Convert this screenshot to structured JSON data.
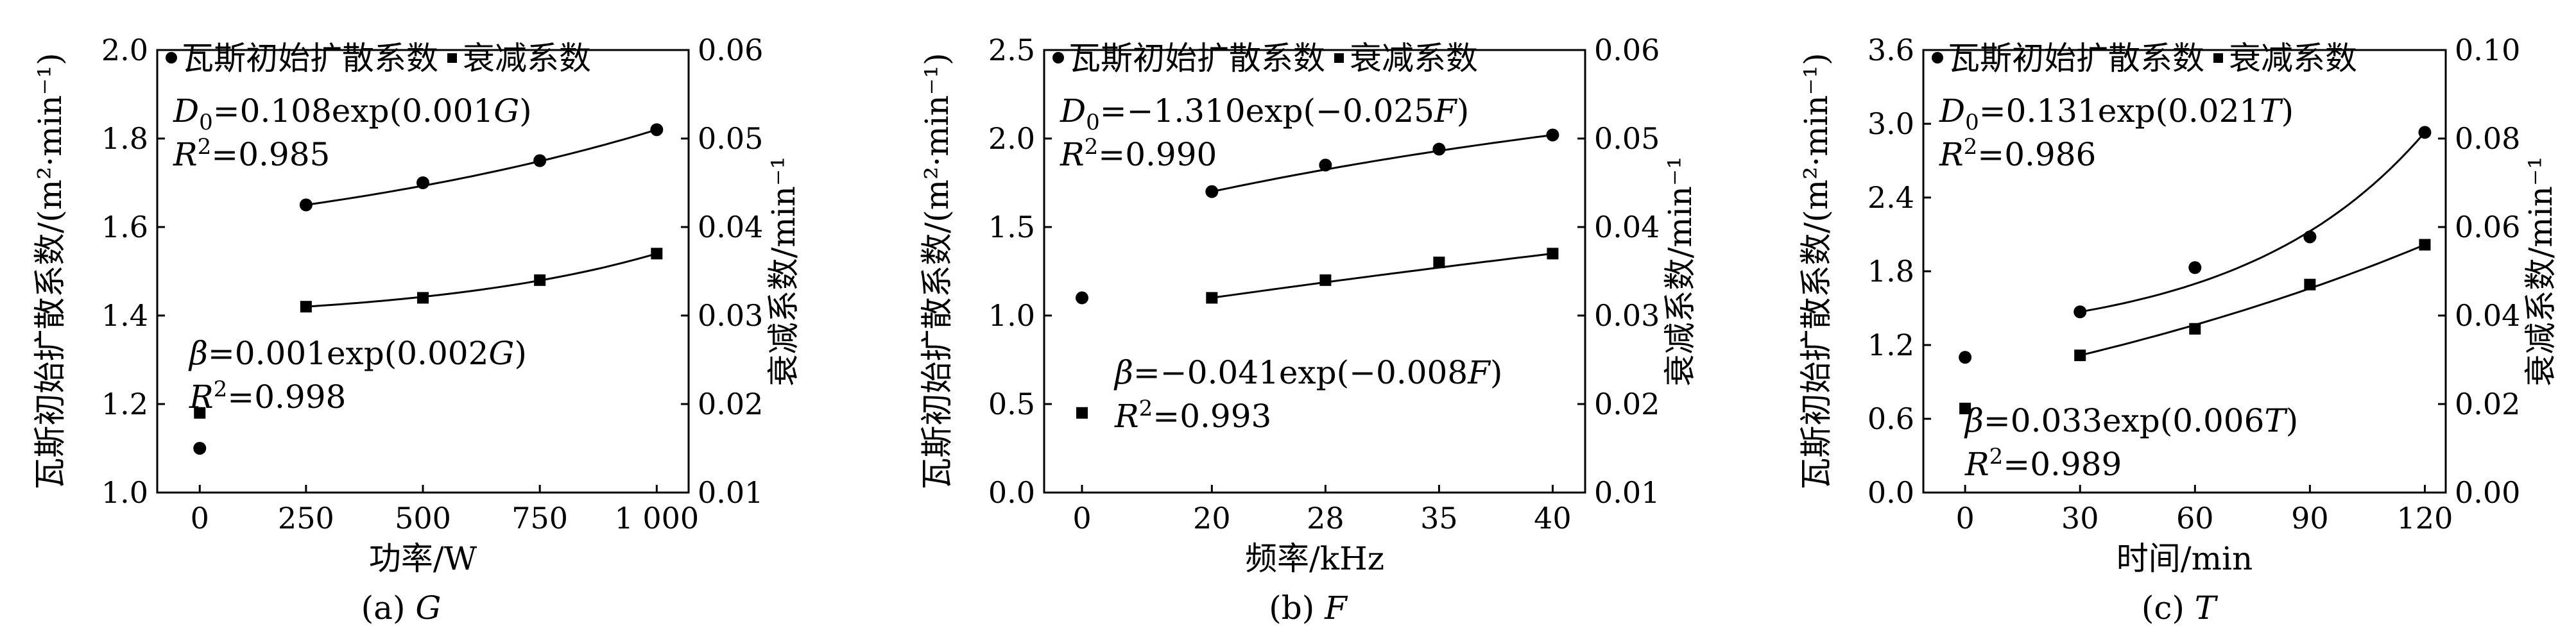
{
  "chart_data": [
    {
      "type": "scatter",
      "caption": "(a) G",
      "xlabel": "功率/W",
      "ylabel_left": "瓦斯初始扩散系数/(m²·min⁻¹)",
      "ylabel_right": "衰减系数/min⁻¹",
      "x_categories": [
        "0",
        "250",
        "500",
        "750",
        "1 000"
      ],
      "ylim_left": [
        1.0,
        2.0
      ],
      "yticks_left": [
        "1.0",
        "1.2",
        "1.4",
        "1.6",
        "1.8",
        "2.0"
      ],
      "ylim_right": [
        0.01,
        0.06
      ],
      "yticks_right": [
        "0.01",
        "0.02",
        "0.03",
        "0.04",
        "0.05",
        "0.06"
      ],
      "legend": [
        "瓦斯初始扩散系数",
        "衰减系数"
      ],
      "series": [
        {
          "name": "瓦斯初始扩散系数",
          "axis": "left",
          "marker": "circle",
          "x": [
            "0",
            "250",
            "500",
            "750",
            "1 000"
          ],
          "y": [
            1.1,
            1.65,
            1.7,
            1.75,
            1.82
          ]
        },
        {
          "name": "衰减系数",
          "axis": "right",
          "marker": "square",
          "x": [
            "0",
            "250",
            "500",
            "750",
            "1 000"
          ],
          "y": [
            0.019,
            0.031,
            0.032,
            0.034,
            0.037
          ]
        }
      ],
      "fits": [
        {
          "series": 0,
          "k": 0.001,
          "x_from": 250,
          "x_to": 1000
        },
        {
          "series": 1,
          "k": 0.002,
          "x_from": 250,
          "x_to": 1000
        }
      ],
      "equations": [
        {
          "lhs": "D",
          "sub": "0",
          "rhs_a": "=0.108exp(0.001",
          "var": "G",
          "rhs_b": ")",
          "r2": "=0.985"
        },
        {
          "lhs": "β",
          "sub": "",
          "rhs_a": "=0.001exp(0.002",
          "var": "G",
          "rhs_b": ")",
          "r2": "=0.998"
        }
      ]
    },
    {
      "type": "scatter",
      "caption": "(b) F",
      "xlabel": "频率/kHz",
      "ylabel_left": "瓦斯初始扩散系数/(m²·min⁻¹)",
      "ylabel_right": "衰减系数/min⁻¹",
      "x_categories": [
        "0",
        "20",
        "28",
        "35",
        "40"
      ],
      "ylim_left": [
        0.0,
        2.5
      ],
      "yticks_left": [
        "0.0",
        "0.5",
        "1.0",
        "1.5",
        "2.0",
        "2.5"
      ],
      "ylim_right": [
        0.01,
        0.06
      ],
      "yticks_right": [
        "0.01",
        "0.02",
        "0.03",
        "0.04",
        "0.05",
        "0.06"
      ],
      "legend": [
        "瓦斯初始扩散系数",
        "衰减系数"
      ],
      "series": [
        {
          "name": "瓦斯初始扩散系数",
          "axis": "left",
          "marker": "circle",
          "x": [
            "0",
            "20",
            "28",
            "35",
            "40"
          ],
          "y": [
            1.1,
            1.7,
            1.85,
            1.94,
            2.02
          ]
        },
        {
          "name": "衰减系数",
          "axis": "right",
          "marker": "square",
          "x": [
            "0",
            "20",
            "28",
            "35",
            "40"
          ],
          "y": [
            0.019,
            0.032,
            0.034,
            0.036,
            0.037
          ]
        }
      ],
      "fits": [
        {
          "series": 0,
          "k": -0.025,
          "x_from": 20,
          "x_to": 40
        },
        {
          "series": 1,
          "k": -0.008,
          "x_from": 20,
          "x_to": 40
        }
      ],
      "equations": [
        {
          "lhs": "D",
          "sub": "0",
          "rhs_a": "=−1.310exp(−0.025",
          "var": "F",
          "rhs_b": ")",
          "r2": "=0.990"
        },
        {
          "lhs": "β",
          "sub": "",
          "rhs_a": "=−0.041exp(−0.008",
          "var": "F",
          "rhs_b": ")",
          "r2": "=0.993"
        }
      ]
    },
    {
      "type": "scatter",
      "caption": "(c) T",
      "xlabel": "时间/min",
      "ylabel_left": "瓦斯初始扩散系数/(m²·min⁻¹)",
      "ylabel_right": "衰减系数/min⁻¹",
      "x_categories": [
        "0",
        "30",
        "60",
        "90",
        "120"
      ],
      "ylim_left": [
        0.0,
        3.6
      ],
      "yticks_left": [
        "0.0",
        "0.6",
        "1.2",
        "1.8",
        "2.4",
        "3.0",
        "3.6"
      ],
      "ylim_right": [
        0.0,
        0.1
      ],
      "yticks_right": [
        "0.00",
        "0.02",
        "0.04",
        "0.06",
        "0.08",
        "0.10"
      ],
      "legend": [
        "瓦斯初始扩散系数",
        "衰减系数"
      ],
      "series": [
        {
          "name": "瓦斯初始扩散系数",
          "axis": "left",
          "marker": "circle",
          "x": [
            "0",
            "30",
            "60",
            "90",
            "120"
          ],
          "y": [
            1.1,
            1.47,
            1.83,
            2.08,
            2.93
          ]
        },
        {
          "name": "衰减系数",
          "axis": "right",
          "marker": "square",
          "x": [
            "0",
            "30",
            "60",
            "90",
            "120"
          ],
          "y": [
            0.019,
            0.031,
            0.037,
            0.047,
            0.056
          ]
        }
      ],
      "fits": [
        {
          "series": 0,
          "k": 0.021,
          "x_from": 30,
          "x_to": 120
        },
        {
          "series": 1,
          "k": 0.006,
          "x_from": 30,
          "x_to": 120
        }
      ],
      "equations": [
        {
          "lhs": "D",
          "sub": "0",
          "rhs_a": "=0.131exp(0.021",
          "var": "T",
          "rhs_b": ")",
          "r2": "=0.986"
        },
        {
          "lhs": "β",
          "sub": "",
          "rhs_a": "=0.033exp(0.006",
          "var": "T",
          "rhs_b": ")",
          "r2": "=0.989"
        }
      ]
    }
  ]
}
